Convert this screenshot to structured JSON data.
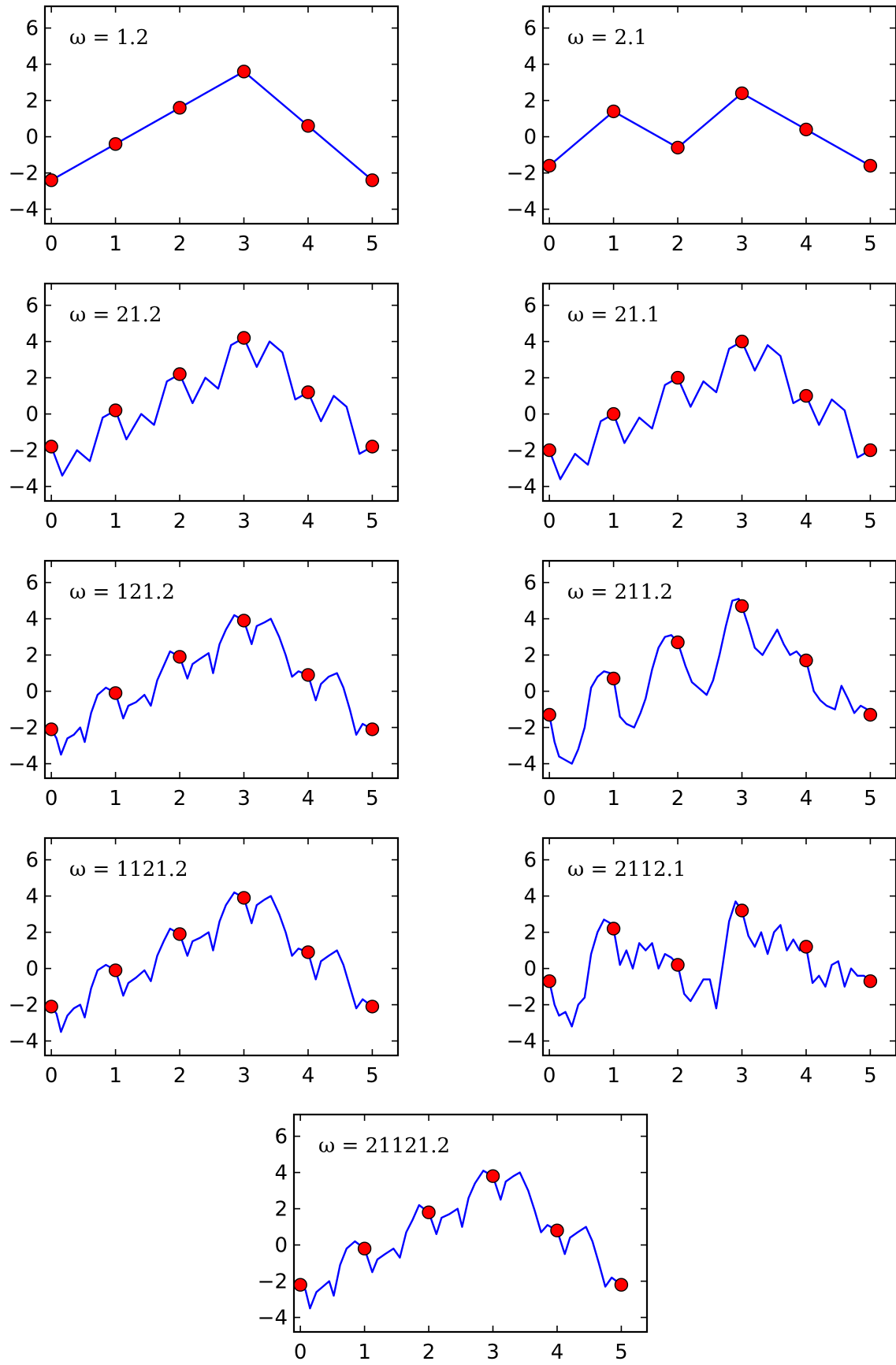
{
  "colors": {
    "line": "#0000ff",
    "marker": "#ff0000",
    "frame": "#000000"
  },
  "chart_data": [
    {
      "type": "line",
      "annotation": "ω = 1.2",
      "xlim": [
        -0.1,
        5.4
      ],
      "ylim": [
        -4.8,
        7.2
      ],
      "xticks": [
        0,
        1,
        2,
        3,
        4,
        5
      ],
      "yticks": [
        -4,
        -2,
        0,
        2,
        4,
        6
      ],
      "xtick_labels": [
        "0",
        "1",
        "2",
        "3",
        "4",
        "5"
      ],
      "ytick_labels": [
        "−4",
        "−2",
        "0",
        "2",
        "4",
        "6"
      ],
      "series": [
        {
          "type": "line",
          "x": [
            0,
            1,
            2,
            3,
            4,
            5
          ],
          "y": [
            -2.4,
            -0.4,
            1.6,
            3.6,
            0.6,
            -2.4
          ]
        },
        {
          "type": "scatter",
          "x": [
            0,
            1,
            2,
            3,
            4,
            5
          ],
          "y": [
            -2.4,
            -0.4,
            1.6,
            3.6,
            0.6,
            -2.4
          ]
        }
      ]
    },
    {
      "type": "line",
      "annotation": "ω = 2.1",
      "xlim": [
        -0.1,
        5.4
      ],
      "ylim": [
        -4.8,
        7.2
      ],
      "xticks": [
        0,
        1,
        2,
        3,
        4,
        5
      ],
      "yticks": [
        -4,
        -2,
        0,
        2,
        4,
        6
      ],
      "xtick_labels": [
        "0",
        "1",
        "2",
        "3",
        "4",
        "5"
      ],
      "ytick_labels": [
        "−4",
        "−2",
        "0",
        "2",
        "4",
        "6"
      ],
      "series": [
        {
          "type": "line",
          "x": [
            0,
            1,
            2,
            3,
            4,
            5
          ],
          "y": [
            -1.6,
            1.4,
            -0.6,
            2.4,
            0.4,
            -1.6
          ]
        },
        {
          "type": "scatter",
          "x": [
            0,
            1,
            2,
            3,
            4,
            5
          ],
          "y": [
            -1.6,
            1.4,
            -0.6,
            2.4,
            0.4,
            -1.6
          ]
        }
      ]
    },
    {
      "type": "line",
      "annotation": "ω = 21.2",
      "xlim": [
        -0.1,
        5.4
      ],
      "ylim": [
        -4.8,
        7.2
      ],
      "xticks": [
        0,
        1,
        2,
        3,
        4,
        5
      ],
      "yticks": [
        -4,
        -2,
        0,
        2,
        4,
        6
      ],
      "xtick_labels": [
        "0",
        "1",
        "2",
        "3",
        "4",
        "5"
      ],
      "ytick_labels": [
        "−4",
        "−2",
        "0",
        "2",
        "4",
        "6"
      ],
      "series": [
        {
          "type": "line",
          "x": [
            0,
            0.17,
            0.4,
            0.6,
            0.8,
            1.0,
            1.17,
            1.4,
            1.6,
            1.8,
            2.0,
            2.2,
            2.4,
            2.6,
            2.8,
            3.0,
            3.2,
            3.4,
            3.6,
            3.8,
            4.0,
            4.2,
            4.4,
            4.6,
            4.8,
            5.0
          ],
          "y": [
            -1.8,
            -3.4,
            -2.0,
            -2.6,
            -0.2,
            0.2,
            -1.4,
            0.0,
            -0.6,
            1.8,
            2.2,
            0.6,
            2.0,
            1.4,
            3.8,
            4.2,
            2.6,
            4.0,
            3.4,
            0.8,
            1.2,
            -0.4,
            1.0,
            0.4,
            -2.2,
            -1.8
          ]
        },
        {
          "type": "scatter",
          "x": [
            0,
            1,
            2,
            3,
            4,
            5
          ],
          "y": [
            -1.8,
            0.2,
            2.2,
            4.2,
            1.2,
            -1.8
          ]
        }
      ]
    },
    {
      "type": "line",
      "annotation": "ω = 21.1",
      "xlim": [
        -0.1,
        5.4
      ],
      "ylim": [
        -4.8,
        7.2
      ],
      "xticks": [
        0,
        1,
        2,
        3,
        4,
        5
      ],
      "yticks": [
        -4,
        -2,
        0,
        2,
        4,
        6
      ],
      "xtick_labels": [
        "0",
        "1",
        "2",
        "3",
        "4",
        "5"
      ],
      "ytick_labels": [
        "−4",
        "−2",
        "0",
        "2",
        "4",
        "6"
      ],
      "series": [
        {
          "type": "line",
          "x": [
            0,
            0.17,
            0.4,
            0.6,
            0.8,
            1.0,
            1.17,
            1.4,
            1.6,
            1.8,
            2.0,
            2.2,
            2.4,
            2.6,
            2.8,
            3.0,
            3.2,
            3.4,
            3.6,
            3.8,
            4.0,
            4.2,
            4.4,
            4.6,
            4.8,
            5.0
          ],
          "y": [
            -2.0,
            -3.6,
            -2.2,
            -2.8,
            -0.4,
            0.0,
            -1.6,
            -0.2,
            -0.8,
            1.6,
            2.0,
            0.4,
            1.8,
            1.2,
            3.6,
            4.0,
            2.4,
            3.8,
            3.2,
            0.6,
            1.0,
            -0.6,
            0.8,
            0.2,
            -2.4,
            -2.0
          ]
        },
        {
          "type": "scatter",
          "x": [
            0,
            1,
            2,
            3,
            4,
            5
          ],
          "y": [
            -2.0,
            0.0,
            2.0,
            4.0,
            1.0,
            -2.0
          ]
        }
      ]
    },
    {
      "type": "line",
      "annotation": "ω = 121.2",
      "xlim": [
        -0.1,
        5.4
      ],
      "ylim": [
        -4.8,
        7.2
      ],
      "xticks": [
        0,
        1,
        2,
        3,
        4,
        5
      ],
      "yticks": [
        -4,
        -2,
        0,
        2,
        4,
        6
      ],
      "xtick_labels": [
        "0",
        "1",
        "2",
        "3",
        "4",
        "5"
      ],
      "ytick_labels": [
        "−4",
        "−2",
        "0",
        "2",
        "4",
        "6"
      ],
      "series": [
        {
          "type": "line",
          "x": [
            0,
            0.08,
            0.15,
            0.25,
            0.35,
            0.45,
            0.52,
            0.62,
            0.72,
            0.85,
            1.0,
            1.12,
            1.2,
            1.32,
            1.45,
            1.55,
            1.65,
            1.75,
            1.85,
            2.0,
            2.12,
            2.2,
            2.32,
            2.45,
            2.52,
            2.62,
            2.72,
            2.85,
            3.0,
            3.12,
            3.2,
            3.32,
            3.42,
            3.55,
            3.65,
            3.75,
            3.85,
            4.0,
            4.12,
            4.2,
            4.32,
            4.45,
            4.55,
            4.65,
            4.75,
            4.85,
            5.0
          ],
          "y": [
            -2.1,
            -2.6,
            -3.5,
            -2.6,
            -2.4,
            -2.0,
            -2.8,
            -1.2,
            -0.2,
            0.2,
            -0.1,
            -1.5,
            -0.8,
            -0.6,
            -0.2,
            -0.8,
            0.6,
            1.4,
            2.2,
            1.9,
            0.7,
            1.5,
            1.8,
            2.1,
            1.0,
            2.6,
            3.4,
            4.2,
            3.9,
            2.6,
            3.6,
            3.8,
            4.0,
            3.0,
            2.0,
            0.8,
            1.1,
            0.9,
            -0.5,
            0.4,
            0.8,
            1.0,
            0.2,
            -1.0,
            -2.4,
            -1.8,
            -2.1
          ]
        },
        {
          "type": "scatter",
          "x": [
            0,
            1,
            2,
            3,
            4,
            5
          ],
          "y": [
            -2.1,
            -0.1,
            1.9,
            3.9,
            0.9,
            -2.1
          ]
        }
      ]
    },
    {
      "type": "line",
      "annotation": "ω = 211.2",
      "xlim": [
        -0.1,
        5.4
      ],
      "ylim": [
        -4.8,
        7.2
      ],
      "xticks": [
        0,
        1,
        2,
        3,
        4,
        5
      ],
      "yticks": [
        -4,
        -2,
        0,
        2,
        4,
        6
      ],
      "xtick_labels": [
        "0",
        "1",
        "2",
        "3",
        "4",
        "5"
      ],
      "ytick_labels": [
        "−4",
        "−2",
        "0",
        "2",
        "4",
        "6"
      ],
      "series": [
        {
          "type": "line",
          "x": [
            0,
            0.08,
            0.15,
            0.25,
            0.35,
            0.45,
            0.55,
            0.65,
            0.75,
            0.85,
            0.95,
            1.0,
            1.1,
            1.2,
            1.32,
            1.42,
            1.5,
            1.6,
            1.7,
            1.8,
            1.9,
            2.0,
            2.12,
            2.22,
            2.32,
            2.45,
            2.55,
            2.65,
            2.75,
            2.85,
            2.95,
            3.0,
            3.1,
            3.2,
            3.32,
            3.45,
            3.55,
            3.65,
            3.75,
            3.85,
            3.95,
            4.0,
            4.12,
            4.22,
            4.32,
            4.45,
            4.55,
            4.65,
            4.75,
            4.85,
            4.95,
            5.0
          ],
          "y": [
            -1.3,
            -2.8,
            -3.6,
            -3.8,
            -4.0,
            -3.2,
            -2.0,
            0.2,
            0.8,
            1.1,
            1.0,
            0.7,
            -1.4,
            -1.8,
            -2.0,
            -1.2,
            -0.4,
            1.2,
            2.4,
            3.0,
            3.1,
            2.7,
            1.4,
            0.5,
            0.2,
            -0.2,
            0.6,
            2.0,
            3.6,
            5.0,
            5.1,
            4.7,
            3.6,
            2.4,
            2.0,
            2.8,
            3.4,
            2.6,
            2.0,
            2.2,
            1.8,
            1.7,
            0.0,
            -0.5,
            -0.8,
            -1.0,
            0.3,
            -0.4,
            -1.2,
            -0.8,
            -1.0,
            -1.3
          ]
        },
        {
          "type": "scatter",
          "x": [
            0,
            1,
            2,
            3,
            4,
            5
          ],
          "y": [
            -1.3,
            0.7,
            2.7,
            4.7,
            1.7,
            -1.3
          ]
        }
      ]
    },
    {
      "type": "line",
      "annotation": "ω = 1121.2",
      "xlim": [
        -0.1,
        5.4
      ],
      "ylim": [
        -4.8,
        7.2
      ],
      "xticks": [
        0,
        1,
        2,
        3,
        4,
        5
      ],
      "yticks": [
        -4,
        -2,
        0,
        2,
        4,
        6
      ],
      "xtick_labels": [
        "0",
        "1",
        "2",
        "3",
        "4",
        "5"
      ],
      "ytick_labels": [
        "−4",
        "−2",
        "0",
        "2",
        "4",
        "6"
      ],
      "series": [
        {
          "type": "line",
          "x": [
            0,
            0.08,
            0.15,
            0.25,
            0.35,
            0.45,
            0.52,
            0.62,
            0.72,
            0.85,
            1.0,
            1.12,
            1.2,
            1.32,
            1.45,
            1.55,
            1.65,
            1.75,
            1.85,
            2.0,
            2.12,
            2.2,
            2.32,
            2.45,
            2.52,
            2.62,
            2.72,
            2.85,
            3.0,
            3.12,
            3.2,
            3.32,
            3.42,
            3.55,
            3.65,
            3.75,
            3.85,
            4.0,
            4.12,
            4.2,
            4.32,
            4.45,
            4.55,
            4.65,
            4.75,
            4.85,
            5.0
          ],
          "y": [
            -2.1,
            -2.5,
            -3.5,
            -2.6,
            -2.2,
            -2.0,
            -2.7,
            -1.1,
            -0.1,
            0.2,
            -0.1,
            -1.5,
            -0.8,
            -0.5,
            -0.1,
            -0.7,
            0.7,
            1.5,
            2.2,
            1.9,
            0.7,
            1.5,
            1.7,
            2.0,
            1.0,
            2.6,
            3.5,
            4.2,
            3.9,
            2.5,
            3.5,
            3.8,
            4.0,
            3.0,
            2.0,
            0.7,
            1.1,
            0.9,
            -0.6,
            0.4,
            0.7,
            1.0,
            0.2,
            -1.0,
            -2.2,
            -1.7,
            -2.1
          ]
        },
        {
          "type": "scatter",
          "x": [
            0,
            1,
            2,
            3,
            4,
            5
          ],
          "y": [
            -2.1,
            -0.1,
            1.9,
            3.9,
            0.9,
            -2.1
          ]
        }
      ]
    },
    {
      "type": "line",
      "annotation": "ω = 2112.1",
      "xlim": [
        -0.1,
        5.4
      ],
      "ylim": [
        -4.8,
        7.2
      ],
      "xticks": [
        0,
        1,
        2,
        3,
        4,
        5
      ],
      "yticks": [
        -4,
        -2,
        0,
        2,
        4,
        6
      ],
      "xtick_labels": [
        "0",
        "1",
        "2",
        "3",
        "4",
        "5"
      ],
      "ytick_labels": [
        "−4",
        "−2",
        "0",
        "2",
        "4",
        "6"
      ],
      "series": [
        {
          "type": "line",
          "x": [
            0,
            0.08,
            0.15,
            0.25,
            0.35,
            0.45,
            0.55,
            0.65,
            0.75,
            0.85,
            0.95,
            1.0,
            1.1,
            1.2,
            1.3,
            1.4,
            1.5,
            1.6,
            1.7,
            1.8,
            1.9,
            2.0,
            2.1,
            2.2,
            2.3,
            2.4,
            2.5,
            2.6,
            2.7,
            2.8,
            2.9,
            3.0,
            3.1,
            3.2,
            3.3,
            3.4,
            3.5,
            3.6,
            3.7,
            3.8,
            3.9,
            4.0,
            4.1,
            4.2,
            4.3,
            4.4,
            4.5,
            4.6,
            4.7,
            4.8,
            4.9,
            5.0
          ],
          "y": [
            -0.7,
            -2.0,
            -2.6,
            -2.4,
            -3.2,
            -2.0,
            -1.6,
            0.8,
            2.0,
            2.7,
            2.5,
            2.2,
            0.2,
            1.0,
            0.0,
            1.4,
            1.0,
            1.4,
            0.0,
            0.8,
            0.6,
            0.2,
            -1.4,
            -1.8,
            -1.2,
            -0.6,
            -0.6,
            -2.2,
            0.2,
            2.6,
            3.7,
            3.2,
            1.8,
            1.2,
            2.0,
            0.8,
            2.0,
            2.4,
            1.0,
            1.6,
            1.0,
            1.2,
            -0.8,
            -0.4,
            -1.0,
            0.2,
            0.4,
            -1.0,
            0.0,
            -0.4,
            -0.4,
            -0.7
          ]
        },
        {
          "type": "scatter",
          "x": [
            0,
            1,
            2,
            3,
            4,
            5
          ],
          "y": [
            -0.7,
            2.2,
            0.2,
            3.2,
            1.2,
            -0.7
          ]
        }
      ]
    },
    {
      "type": "line",
      "annotation": "ω = 21121.2",
      "xlim": [
        -0.1,
        5.4
      ],
      "ylim": [
        -4.8,
        7.2
      ],
      "xticks": [
        0,
        1,
        2,
        3,
        4,
        5
      ],
      "yticks": [
        -4,
        -2,
        0,
        2,
        4,
        6
      ],
      "xtick_labels": [
        "0",
        "1",
        "2",
        "3",
        "4",
        "5"
      ],
      "ytick_labels": [
        "−4",
        "−2",
        "0",
        "2",
        "4",
        "6"
      ],
      "series": [
        {
          "type": "line",
          "x": [
            0,
            0.08,
            0.15,
            0.25,
            0.35,
            0.45,
            0.52,
            0.62,
            0.72,
            0.85,
            1.0,
            1.12,
            1.2,
            1.32,
            1.45,
            1.55,
            1.65,
            1.75,
            1.85,
            2.0,
            2.12,
            2.2,
            2.32,
            2.45,
            2.52,
            2.62,
            2.72,
            2.85,
            3.0,
            3.12,
            3.2,
            3.32,
            3.42,
            3.55,
            3.65,
            3.75,
            3.85,
            4.0,
            4.12,
            4.2,
            4.32,
            4.45,
            4.55,
            4.65,
            4.75,
            4.85,
            5.0
          ],
          "y": [
            -2.2,
            -2.5,
            -3.5,
            -2.6,
            -2.3,
            -2.0,
            -2.8,
            -1.1,
            -0.2,
            0.2,
            -0.2,
            -1.5,
            -0.8,
            -0.5,
            -0.2,
            -0.7,
            0.7,
            1.4,
            2.2,
            1.8,
            0.6,
            1.5,
            1.7,
            2.0,
            1.0,
            2.6,
            3.4,
            4.1,
            3.8,
            2.5,
            3.5,
            3.8,
            4.0,
            3.0,
            1.9,
            0.7,
            1.1,
            0.8,
            -0.5,
            0.4,
            0.7,
            1.0,
            0.2,
            -1.0,
            -2.3,
            -1.8,
            -2.2
          ]
        },
        {
          "type": "scatter",
          "x": [
            0,
            1,
            2,
            3,
            4,
            5
          ],
          "y": [
            -2.2,
            -0.2,
            1.8,
            3.8,
            0.8,
            -2.2
          ]
        }
      ]
    }
  ]
}
